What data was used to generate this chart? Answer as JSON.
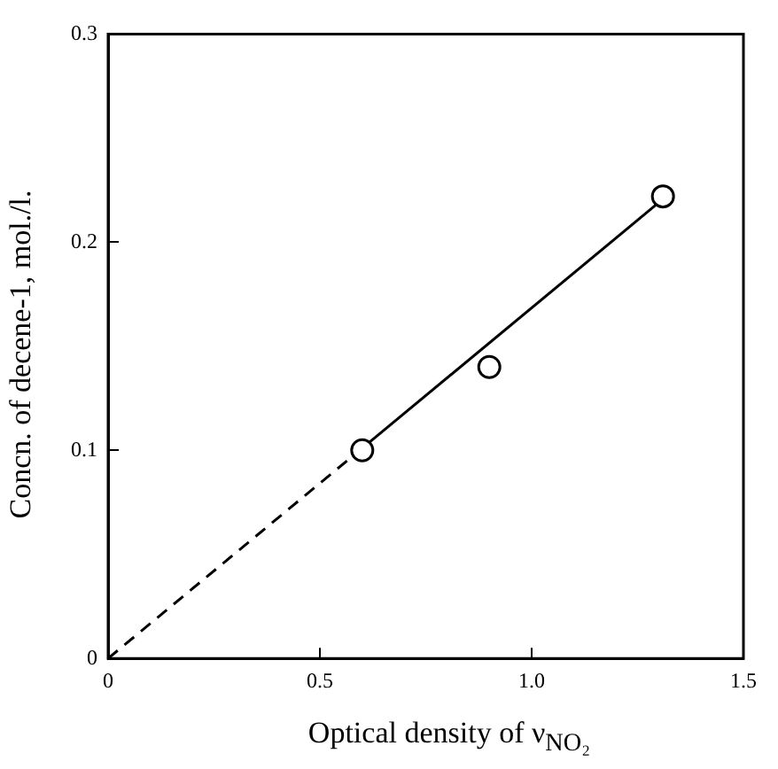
{
  "chart_data": {
    "type": "scatter",
    "xlabel": "Optical density of ν$_{NO₂}$",
    "ylabel": "Concn. of decene-1, mol./l.",
    "xlim": [
      0,
      1.5
    ],
    "ylim": [
      0,
      0.3
    ],
    "xticks": [
      0,
      0.5,
      {
        "value": 1,
        "label": "1.0"
      },
      1.5
    ],
    "yticks": [
      0,
      0.1,
      0.2,
      0.3
    ],
    "grid": false,
    "legend": false,
    "marker": "circle",
    "series": [
      {
        "color": "#000000",
        "x": [
          0.6,
          0.9,
          1.31
        ],
        "values": [
          0.1,
          0.14,
          0.222
        ]
      },
      {
        "type": "line",
        "color": "#000000",
        "x": [
          0.6,
          1.3
        ],
        "values": [
          0.101,
          0.219
        ],
        "line_style": "solid",
        "marker": "none"
      },
      {
        "type": "line",
        "color": "#000000",
        "x": [
          0,
          0.6
        ],
        "values": [
          0,
          0.101
        ],
        "line_style": "dashed",
        "marker": "none"
      }
    ]
  }
}
